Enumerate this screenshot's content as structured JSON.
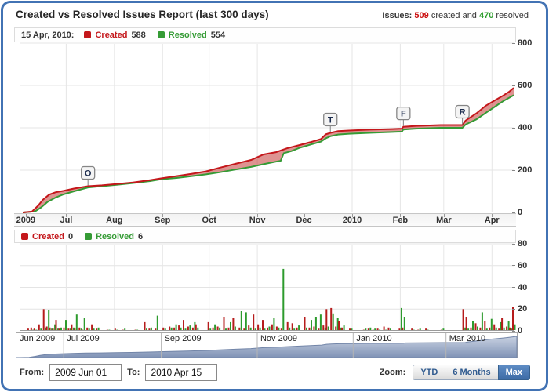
{
  "header": {
    "title": "Created vs Resolved Issues Report (last 300 days)",
    "issues_label": "Issues:",
    "created_count": "509",
    "created_text": "created and",
    "resolved_count": "470",
    "resolved_text": "resolved"
  },
  "colors": {
    "created_red": "#c4171b",
    "resolved_green": "#359b35",
    "frame_blue": "#4273b4",
    "navigator_fill": "#8093b6",
    "zoom_active_blue": "#3d6ba6"
  },
  "main_legend": {
    "date": "15 Apr, 2010:",
    "created_label": "Created",
    "created_value": "588",
    "resolved_label": "Resolved",
    "resolved_value": "554"
  },
  "daily_legend": {
    "created_label": "Created",
    "created_value": "0",
    "resolved_label": "Resolved",
    "resolved_value": "6"
  },
  "footer": {
    "from_label": "From:",
    "from_value": "2009 Jun 01",
    "to_label": "To:",
    "to_value": "2010 Apr 15",
    "zoom_label": "Zoom:",
    "zoom_options": [
      "YTD",
      "6 Months",
      "Max"
    ],
    "zoom_active": "Max"
  },
  "chart_data": [
    {
      "type": "area",
      "title": "Cumulative created vs resolved issues",
      "x_unit": "days since 2009-06-01",
      "x_range": [
        0,
        318
      ],
      "ylim": [
        0,
        800
      ],
      "y_ticks": [
        0,
        200,
        400,
        600,
        800
      ],
      "x_ticks": [
        {
          "label": "2009",
          "day": 4,
          "grid": false
        },
        {
          "label": "Jul",
          "day": 30
        },
        {
          "label": "Aug",
          "day": 61
        },
        {
          "label": "Sep",
          "day": 92
        },
        {
          "label": "Oct",
          "day": 122
        },
        {
          "label": "Nov",
          "day": 153
        },
        {
          "label": "Dec",
          "day": 183
        },
        {
          "label": "2010",
          "day": 214
        },
        {
          "label": "Feb",
          "day": 245
        },
        {
          "label": "Mar",
          "day": 273
        },
        {
          "label": "Apr",
          "day": 304
        }
      ],
      "fill_between": "rgba(190,40,35,0.5)",
      "series": [
        {
          "name": "Created",
          "color": "#c4171b",
          "points": [
            [
              2,
              0
            ],
            [
              8,
              4
            ],
            [
              12,
              33
            ],
            [
              15,
              60
            ],
            [
              19,
              84
            ],
            [
              23,
              95
            ],
            [
              28,
              102
            ],
            [
              35,
              113
            ],
            [
              44,
              124
            ],
            [
              53,
              128
            ],
            [
              63,
              135
            ],
            [
              73,
              142
            ],
            [
              84,
              153
            ],
            [
              91,
              161
            ],
            [
              101,
              172
            ],
            [
              111,
              183
            ],
            [
              120,
              194
            ],
            [
              129,
              212
            ],
            [
              139,
              230
            ],
            [
              149,
              248
            ],
            [
              157,
              274
            ],
            [
              165,
              285
            ],
            [
              172,
              303
            ],
            [
              180,
              318
            ],
            [
              187,
              332
            ],
            [
              194,
              347
            ],
            [
              197,
              369
            ],
            [
              200,
              376
            ],
            [
              205,
              384
            ],
            [
              212,
              387
            ],
            [
              225,
              391
            ],
            [
              240,
              394
            ],
            [
              246,
              396
            ],
            [
              247,
              405
            ],
            [
              255,
              409
            ],
            [
              271,
              413
            ],
            [
              285,
              413
            ],
            [
              287,
              434
            ],
            [
              294,
              468
            ],
            [
              300,
              504
            ],
            [
              306,
              530
            ],
            [
              311,
              551
            ],
            [
              315,
              570
            ],
            [
              318,
              588
            ]
          ]
        },
        {
          "name": "Resolved",
          "color": "#359b35",
          "points": [
            [
              2,
              0
            ],
            [
              10,
              5
            ],
            [
              14,
              25
            ],
            [
              18,
              50
            ],
            [
              23,
              70
            ],
            [
              28,
              85
            ],
            [
              35,
              100
            ],
            [
              44,
              118
            ],
            [
              53,
              124
            ],
            [
              63,
              131
            ],
            [
              73,
              139
            ],
            [
              84,
              148
            ],
            [
              91,
              157
            ],
            [
              101,
              163
            ],
            [
              111,
              172
            ],
            [
              120,
              180
            ],
            [
              129,
              190
            ],
            [
              139,
              203
            ],
            [
              149,
              215
            ],
            [
              157,
              228
            ],
            [
              165,
              240
            ],
            [
              168,
              244
            ],
            [
              170,
              280
            ],
            [
              175,
              290
            ],
            [
              180,
              305
            ],
            [
              187,
              320
            ],
            [
              194,
              335
            ],
            [
              197,
              350
            ],
            [
              200,
              360
            ],
            [
              205,
              368
            ],
            [
              212,
              372
            ],
            [
              225,
              376
            ],
            [
              240,
              380
            ],
            [
              246,
              382
            ],
            [
              247,
              392
            ],
            [
              255,
              396
            ],
            [
              271,
              400
            ],
            [
              285,
              400
            ],
            [
              287,
              415
            ],
            [
              294,
              440
            ],
            [
              300,
              470
            ],
            [
              306,
              500
            ],
            [
              311,
              525
            ],
            [
              315,
              542
            ],
            [
              318,
              554
            ]
          ]
        }
      ],
      "flags": [
        {
          "label": "O",
          "day": 44,
          "value": 124
        },
        {
          "label": "T",
          "day": 200,
          "value": 376
        },
        {
          "label": "F",
          "day": 247,
          "value": 405
        },
        {
          "label": "R",
          "day": 285,
          "value": 413
        }
      ]
    },
    {
      "type": "bar",
      "title": "Daily created vs resolved issues",
      "ylim": [
        0,
        80
      ],
      "y_ticks": [
        0,
        20,
        40,
        60,
        80
      ],
      "columns": [
        "day",
        "created",
        "resolved"
      ],
      "colors": {
        "created": "#b61c1c",
        "resolved": "#2d9b2d"
      },
      "bars": [
        [
          6,
          2,
          0
        ],
        [
          8,
          3,
          1
        ],
        [
          10,
          2,
          1
        ],
        [
          13,
          6,
          2
        ],
        [
          16,
          20,
          3
        ],
        [
          18,
          4,
          19
        ],
        [
          20,
          3,
          2
        ],
        [
          22,
          2,
          6
        ],
        [
          24,
          10,
          2
        ],
        [
          26,
          2,
          3
        ],
        [
          29,
          3,
          10
        ],
        [
          32,
          2,
          2
        ],
        [
          34,
          6,
          3
        ],
        [
          36,
          2,
          15
        ],
        [
          39,
          3,
          2
        ],
        [
          41,
          1,
          12
        ],
        [
          44,
          3,
          2
        ],
        [
          47,
          6,
          2
        ],
        [
          50,
          2,
          3
        ],
        [
          57,
          1,
          1
        ],
        [
          62,
          2,
          1
        ],
        [
          67,
          1,
          2
        ],
        [
          75,
          1,
          1
        ],
        [
          81,
          8,
          2
        ],
        [
          84,
          2,
          3
        ],
        [
          88,
          2,
          14
        ],
        [
          93,
          3,
          2
        ],
        [
          97,
          4,
          3
        ],
        [
          100,
          3,
          6
        ],
        [
          103,
          5,
          3
        ],
        [
          106,
          10,
          2
        ],
        [
          109,
          4,
          5
        ],
        [
          112,
          3,
          8
        ],
        [
          114,
          6,
          3
        ],
        [
          122,
          8,
          2
        ],
        [
          125,
          3,
          6
        ],
        [
          128,
          4,
          3
        ],
        [
          132,
          13,
          2
        ],
        [
          135,
          3,
          8
        ],
        [
          138,
          12,
          4
        ],
        [
          142,
          3,
          18
        ],
        [
          145,
          2,
          17
        ],
        [
          148,
          5,
          3
        ],
        [
          151,
          15,
          2
        ],
        [
          154,
          6,
          3
        ],
        [
          157,
          10,
          2
        ],
        [
          160,
          3,
          4
        ],
        [
          163,
          6,
          12
        ],
        [
          166,
          4,
          3
        ],
        [
          169,
          2,
          57
        ],
        [
          173,
          8,
          3
        ],
        [
          176,
          7,
          2
        ],
        [
          179,
          3,
          5
        ],
        [
          184,
          13,
          3
        ],
        [
          187,
          3,
          10
        ],
        [
          190,
          4,
          13
        ],
        [
          193,
          2,
          15
        ],
        [
          196,
          5,
          3
        ],
        [
          198,
          20,
          4
        ],
        [
          201,
          21,
          16
        ],
        [
          204,
          4,
          12
        ],
        [
          206,
          9,
          3
        ],
        [
          208,
          3,
          5
        ],
        [
          213,
          2,
          2
        ],
        [
          222,
          1,
          2
        ],
        [
          225,
          2,
          3
        ],
        [
          228,
          1,
          2
        ],
        [
          231,
          2,
          1
        ],
        [
          235,
          4,
          1
        ],
        [
          238,
          3,
          2
        ],
        [
          245,
          2,
          21
        ],
        [
          247,
          3,
          13
        ],
        [
          253,
          2,
          1
        ],
        [
          257,
          1,
          2
        ],
        [
          262,
          2,
          1
        ],
        [
          272,
          1,
          2
        ],
        [
          286,
          20,
          3
        ],
        [
          288,
          13,
          2
        ],
        [
          291,
          3,
          9
        ],
        [
          294,
          7,
          4
        ],
        [
          297,
          3,
          17
        ],
        [
          300,
          9,
          2
        ],
        [
          303,
          3,
          11
        ],
        [
          306,
          6,
          3
        ],
        [
          309,
          2,
          8
        ],
        [
          311,
          12,
          3
        ],
        [
          314,
          4,
          9
        ],
        [
          316,
          3,
          2
        ],
        [
          318,
          22,
          6
        ]
      ]
    },
    {
      "type": "area",
      "title": "Navigator overview (cumulative created)",
      "source_series": "Created",
      "labels": [
        {
          "text": "Jun 2009",
          "day": 0
        },
        {
          "text": "Jul 2009",
          "day": 30
        },
        {
          "text": "Sep 2009",
          "day": 92
        },
        {
          "text": "Nov 2009",
          "day": 153
        },
        {
          "text": "Jan 2010",
          "day": 214
        },
        {
          "text": "Mar 2010",
          "day": 273
        }
      ],
      "divider_days": [
        30,
        92,
        153,
        214,
        273
      ]
    }
  ]
}
